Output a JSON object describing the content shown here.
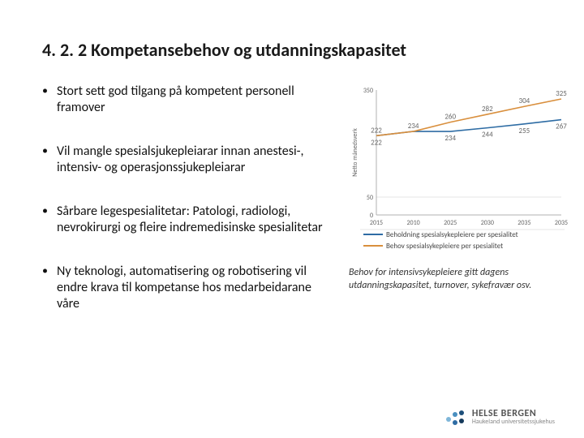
{
  "title": "4. 2. 2 Kompetansebehov og utdanningskapasitet",
  "bullets": [
    "Stort sett god tilgang på kompetent personell framover",
    "Vil mangle spesialsjukepleiarar innan anestesi-, intensiv- og operasjonssjukepleiarar",
    "Sårbare legespesialitetar: Patologi, radiologi, nevrokirurgi og fleire indremedisinske spesialitetar",
    "Ny teknologi, automatisering og robotisering vil endre krava til kompetanse hos medarbeidarane våre"
  ],
  "caption": "Behov for intensivsykepleiere gitt dagens utdanningskapasitet, turnover, sykefravær osv.",
  "chart": {
    "type": "line",
    "ylabel": "Netto månedsverk",
    "x_categories": [
      "2015",
      "2010",
      "2025",
      "2030",
      "2035",
      "2035"
    ],
    "ylim": [
      0,
      350
    ],
    "yticks": [
      0,
      50
    ],
    "series": [
      {
        "name": "Beholdning spesialsykepleiere per spesialitet",
        "color": "#2e6ca4",
        "values": [
          222,
          234,
          234,
          244,
          255,
          267
        ]
      },
      {
        "name": "Behov spesialsykepleiere per spesialitet",
        "color": "#d98f3d",
        "values": [
          222,
          234,
          260,
          282,
          304,
          325
        ]
      }
    ],
    "axis_color": "#b0b0b0",
    "grid_color": "#dcdcdc",
    "label_color": "#666666",
    "background": "#ffffff",
    "line_width": 1.6,
    "label_fontsize": 9,
    "tick_fontsize": 8
  },
  "logo": {
    "text1": "HELSE BERGEN",
    "text2": "Haukeland universitetssjukehus",
    "dot_colors": [
      "#7fb6d9",
      "#4a8fc0",
      "#2e6ca4",
      "#1d4f7a",
      "#153a5b"
    ]
  }
}
